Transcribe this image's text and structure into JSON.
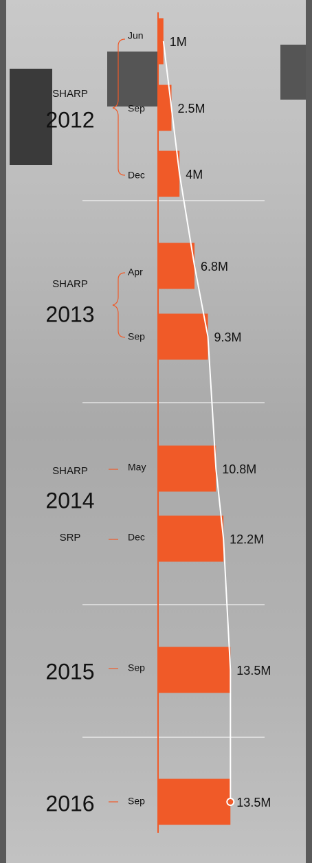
{
  "chart_data": {
    "type": "bar",
    "categories": [
      "Jun",
      "Sep",
      "Dec",
      "Apr",
      "Sep",
      "May",
      "Dec",
      "Sep",
      "Sep"
    ],
    "values": [
      1,
      2.5,
      4,
      6.8,
      9.3,
      10.8,
      12.2,
      13.5,
      13.5
    ],
    "value_labels": [
      "1M",
      "2.5M",
      "4M",
      "6.8M",
      "9.3M",
      "10.8M",
      "12.2M",
      "13.5M",
      "13.5M"
    ],
    "color": "#f05a28",
    "groups": [
      {
        "year": "2012",
        "plans": [
          "SHARP"
        ]
      },
      {
        "year": "2013",
        "plans": [
          "SHARP"
        ]
      },
      {
        "year": "2014",
        "plans": [
          "SHARP",
          "SRP"
        ]
      },
      {
        "year": "2015",
        "plans": []
      },
      {
        "year": "2016",
        "plans": []
      }
    ]
  }
}
